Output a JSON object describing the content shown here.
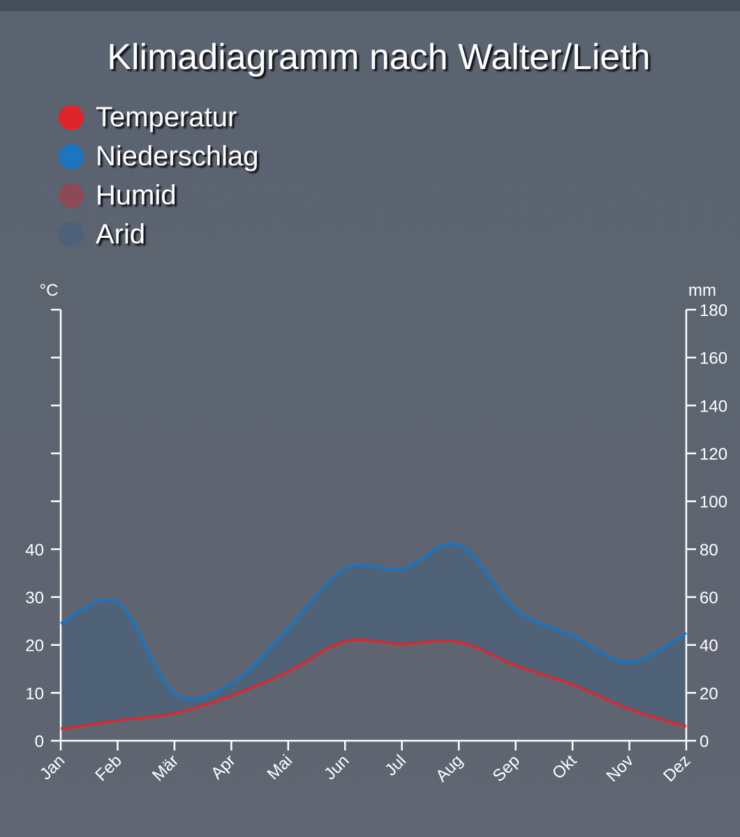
{
  "title": "Klimadiagramm nach Walter/Lieth",
  "legend": [
    {
      "label": "Temperatur",
      "color": "#e0242b"
    },
    {
      "label": "Niederschlag",
      "color": "#1b75bf"
    },
    {
      "label": "Humid",
      "color": "#8c4a56"
    },
    {
      "label": "Arid",
      "color": "#4d6178"
    }
  ],
  "chart_data": {
    "type": "line",
    "title": "Klimadiagramm nach Walter/Lieth",
    "categories": [
      "Jan",
      "Feb",
      "Mär",
      "Apr",
      "Mai",
      "Jun",
      "Jul",
      "Aug",
      "Sep",
      "Okt",
      "Nov",
      "Dez"
    ],
    "series": [
      {
        "name": "Temperatur",
        "unit": "°C",
        "axis": "left",
        "color": "#e0242b",
        "values": [
          2.5,
          4.3,
          5.8,
          9.5,
          14.5,
          20.8,
          20.3,
          20.7,
          15.8,
          11.8,
          6.7,
          3.0
        ]
      },
      {
        "name": "Niederschlag",
        "unit": "mm",
        "axis": "right",
        "color": "#1b75bf",
        "values": [
          49,
          58,
          20,
          24,
          47,
          72,
          72,
          82,
          55,
          44,
          33,
          45
        ]
      }
    ],
    "y_left": {
      "label": "°C",
      "ticks": [
        0,
        10,
        20,
        30,
        40
      ],
      "min": 0,
      "max": 90
    },
    "y_right": {
      "label": "mm",
      "ticks": [
        0,
        20,
        40,
        60,
        80,
        100,
        120,
        140,
        160,
        180
      ],
      "min": 0,
      "max": 180
    },
    "fill": {
      "arid_color": "#4d6178",
      "humid_color": "#8c4a56"
    },
    "grid": false,
    "legend_position": "top-left"
  }
}
